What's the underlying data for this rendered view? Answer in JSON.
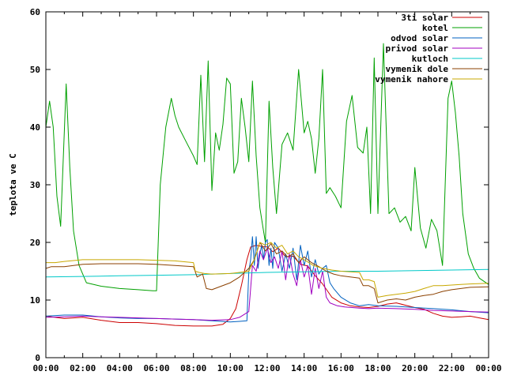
{
  "chart_data": {
    "type": "line",
    "title": "",
    "xlabel": "",
    "ylabel": "teplota ve C",
    "x_unit": "time of day (hours)",
    "xlim": [
      0,
      24
    ],
    "ylim": [
      0,
      60
    ],
    "x_ticks": [
      "00:00",
      "02:00",
      "04:00",
      "06:00",
      "08:00",
      "10:00",
      "12:00",
      "14:00",
      "16:00",
      "18:00",
      "20:00",
      "22:00",
      "00:00"
    ],
    "y_ticks": [
      "0",
      "10",
      "20",
      "30",
      "40",
      "50",
      "60"
    ],
    "grid": false,
    "legend_position": "top-right",
    "series": [
      {
        "name": "3ti solar",
        "color": "#cc0000",
        "x": [
          0.0,
          1.0,
          2.0,
          3.0,
          4.0,
          5.0,
          6.0,
          7.0,
          8.0,
          9.0,
          9.6,
          10.0,
          10.3,
          10.6,
          10.9,
          11.1,
          11.4,
          11.7,
          12.0,
          12.3,
          12.6,
          13.0,
          13.4,
          13.8,
          14.2,
          14.6,
          15.0,
          15.5,
          16.0,
          16.5,
          17.0,
          17.5,
          18.0,
          18.5,
          19.0,
          19.5,
          20.0,
          20.5,
          21.0,
          21.5,
          22.0,
          22.5,
          23.0,
          23.5,
          24.0
        ],
        "y": [
          7.2,
          6.8,
          7.0,
          6.5,
          6.1,
          6.1,
          5.9,
          5.6,
          5.5,
          5.5,
          5.8,
          6.8,
          8.5,
          12.5,
          17.0,
          19.2,
          19.5,
          19.3,
          19.2,
          18.4,
          19.0,
          17.5,
          17.6,
          16.2,
          15.9,
          14.2,
          12.8,
          10.5,
          9.5,
          9.0,
          8.8,
          8.7,
          8.9,
          9.3,
          9.5,
          9.1,
          8.7,
          8.4,
          7.7,
          7.2,
          7.0,
          7.1,
          7.2,
          6.9,
          6.6
        ]
      },
      {
        "name": "kotel",
        "color": "#00a000",
        "x": [
          0.0,
          0.2,
          0.4,
          0.6,
          0.8,
          1.1,
          1.3,
          1.5,
          1.8,
          2.2,
          3.0,
          4.0,
          5.0,
          5.8,
          6.0,
          6.2,
          6.5,
          6.8,
          7.0,
          7.2,
          7.6,
          8.0,
          8.2,
          8.4,
          8.6,
          8.8,
          9.0,
          9.2,
          9.4,
          9.6,
          9.8,
          10.0,
          10.2,
          10.4,
          10.6,
          10.8,
          11.0,
          11.2,
          11.4,
          11.6,
          11.8,
          11.9,
          12.1,
          12.3,
          12.5,
          12.8,
          13.1,
          13.4,
          13.7,
          14.0,
          14.2,
          14.4,
          14.6,
          14.8,
          15.0,
          15.2,
          15.4,
          15.7,
          16.0,
          16.3,
          16.6,
          16.9,
          17.2,
          17.4,
          17.6,
          17.8,
          18.0,
          18.3,
          18.6,
          18.9,
          19.2,
          19.5,
          19.8,
          20.0,
          20.3,
          20.6,
          20.9,
          21.2,
          21.5,
          21.8,
          22.0,
          22.2,
          22.4,
          22.6,
          22.9,
          23.2,
          23.5,
          24.0
        ],
        "y": [
          40.0,
          44.5,
          40.0,
          28.0,
          22.8,
          47.5,
          33.0,
          22.0,
          16.0,
          13.0,
          12.4,
          12.0,
          11.8,
          11.6,
          11.6,
          30.0,
          40.0,
          45.0,
          42.0,
          40.0,
          37.5,
          35.0,
          33.5,
          49.0,
          34.0,
          51.5,
          29.0,
          39.0,
          36.0,
          40.5,
          48.5,
          47.5,
          32.0,
          34.0,
          45.0,
          40.0,
          34.0,
          48.0,
          35.0,
          26.0,
          22.0,
          20.0,
          44.5,
          33.0,
          25.0,
          37.0,
          39.0,
          36.0,
          50.0,
          39.0,
          41.0,
          38.0,
          32.0,
          38.0,
          50.0,
          28.5,
          29.5,
          28.0,
          26.0,
          41.0,
          45.5,
          36.5,
          35.5,
          40.0,
          25.0,
          52.0,
          25.0,
          54.5,
          25.0,
          26.0,
          23.5,
          24.5,
          22.0,
          33.0,
          22.5,
          19.0,
          24.0,
          22.0,
          16.0,
          45.0,
          48.0,
          42.5,
          35.0,
          25.0,
          18.0,
          15.5,
          13.8,
          12.7
        ]
      },
      {
        "name": "odvod solar",
        "color": "#0060c0",
        "x": [
          0.0,
          1.0,
          2.0,
          3.0,
          4.0,
          5.0,
          6.0,
          7.0,
          8.0,
          9.0,
          10.0,
          10.5,
          10.9,
          11.0,
          11.1,
          11.2,
          11.3,
          11.4,
          11.5,
          11.6,
          11.7,
          11.8,
          11.9,
          12.0,
          12.1,
          12.2,
          12.3,
          12.4,
          12.6,
          12.8,
          13.0,
          13.2,
          13.4,
          13.6,
          13.8,
          14.0,
          14.2,
          14.4,
          14.6,
          14.8,
          15.0,
          15.2,
          15.4,
          15.6,
          16.0,
          16.5,
          17.0,
          17.5,
          18.0,
          19.0,
          20.0,
          21.0,
          22.0,
          23.0,
          24.0
        ],
        "y": [
          7.2,
          7.4,
          7.4,
          7.1,
          6.9,
          6.8,
          6.8,
          6.7,
          6.6,
          6.4,
          6.2,
          6.3,
          6.4,
          15.0,
          17.0,
          21.0,
          16.0,
          21.0,
          15.5,
          18.0,
          19.5,
          17.0,
          20.0,
          20.5,
          16.0,
          19.0,
          15.5,
          20.0,
          19.0,
          15.0,
          18.0,
          15.5,
          19.0,
          13.5,
          19.5,
          16.0,
          18.5,
          14.0,
          17.0,
          14.5,
          15.5,
          16.0,
          13.0,
          12.0,
          10.5,
          9.5,
          9.0,
          9.2,
          9.0,
          8.9,
          8.7,
          8.5,
          8.3,
          8.0,
          7.8
        ]
      },
      {
        "name": "privod solar",
        "color": "#a000c0",
        "x": [
          0.0,
          1.0,
          2.0,
          3.0,
          4.0,
          5.0,
          6.0,
          7.0,
          8.0,
          9.0,
          10.0,
          10.5,
          11.0,
          11.1,
          11.2,
          11.4,
          11.6,
          11.8,
          12.0,
          12.2,
          12.4,
          12.6,
          12.8,
          13.0,
          13.2,
          13.4,
          13.6,
          13.8,
          14.0,
          14.2,
          14.4,
          14.6,
          14.8,
          15.0,
          15.2,
          15.4,
          15.8,
          16.2,
          16.6,
          17.0,
          17.5,
          18.0,
          19.0,
          20.0,
          21.0,
          22.0,
          23.0,
          24.0
        ],
        "y": [
          7.0,
          7.1,
          7.2,
          7.1,
          7.0,
          6.9,
          6.8,
          6.7,
          6.6,
          6.5,
          6.6,
          7.0,
          8.0,
          12.0,
          16.0,
          15.0,
          18.5,
          17.0,
          19.0,
          16.5,
          17.5,
          15.5,
          18.5,
          13.5,
          18.0,
          14.5,
          12.5,
          17.0,
          14.0,
          16.0,
          11.0,
          15.5,
          12.0,
          15.0,
          10.5,
          9.5,
          9.0,
          8.8,
          8.7,
          8.6,
          8.5,
          8.6,
          8.5,
          8.4,
          8.2,
          8.1,
          8.0,
          7.9
        ]
      },
      {
        "name": "kutloch",
        "color": "#00c8c8",
        "x": [
          0.0,
          2.0,
          4.0,
          6.0,
          8.0,
          10.0,
          12.0,
          14.0,
          16.0,
          18.0,
          20.0,
          22.0,
          24.0
        ],
        "y": [
          14.0,
          14.1,
          14.2,
          14.3,
          14.4,
          14.6,
          14.8,
          14.9,
          15.0,
          15.0,
          15.1,
          15.2,
          15.3
        ]
      },
      {
        "name": "vymenik dole",
        "color": "#8b4000",
        "x": [
          0.0,
          0.3,
          1.0,
          2.0,
          3.0,
          4.0,
          5.0,
          6.0,
          7.0,
          8.0,
          8.2,
          8.5,
          8.7,
          9.0,
          10.0,
          10.5,
          11.0,
          11.3,
          11.6,
          11.9,
          12.2,
          12.5,
          12.8,
          13.1,
          13.4,
          13.7,
          14.0,
          14.4,
          14.8,
          15.2,
          15.6,
          16.0,
          16.5,
          17.0,
          17.2,
          17.5,
          17.8,
          18.0,
          18.5,
          19.0,
          19.5,
          20.0,
          20.5,
          21.0,
          21.5,
          22.0,
          22.5,
          23.0,
          24.0
        ],
        "y": [
          15.5,
          15.8,
          15.8,
          16.2,
          16.3,
          16.3,
          16.3,
          16.2,
          16.0,
          15.8,
          14.0,
          14.5,
          12.0,
          11.8,
          13.0,
          14.0,
          15.5,
          17.0,
          20.0,
          18.5,
          19.8,
          18.0,
          18.5,
          17.5,
          18.0,
          16.5,
          17.5,
          16.5,
          15.8,
          15.0,
          14.5,
          14.2,
          14.0,
          13.8,
          12.5,
          12.5,
          12.0,
          9.5,
          10.0,
          10.2,
          10.0,
          10.5,
          10.8,
          11.0,
          11.5,
          11.8,
          12.0,
          12.2,
          12.3
        ]
      },
      {
        "name": "vymenik nahore",
        "color": "#c8a800",
        "x": [
          0.0,
          0.5,
          1.0,
          2.0,
          3.0,
          4.0,
          5.0,
          6.0,
          7.0,
          8.0,
          8.1,
          8.3,
          8.6,
          9.0,
          10.0,
          10.5,
          11.0,
          11.3,
          11.6,
          11.9,
          12.2,
          12.5,
          12.8,
          13.1,
          13.4,
          13.7,
          14.0,
          14.5,
          15.0,
          15.5,
          16.0,
          16.5,
          17.0,
          17.2,
          17.5,
          17.8,
          18.0,
          18.5,
          19.0,
          19.5,
          20.0,
          20.5,
          21.0,
          21.5,
          22.0,
          22.5,
          23.0,
          24.0
        ],
        "y": [
          16.5,
          16.5,
          16.7,
          17.0,
          17.0,
          17.0,
          17.0,
          16.9,
          16.8,
          16.5,
          15.0,
          14.8,
          14.6,
          14.5,
          14.6,
          14.8,
          15.0,
          17.0,
          20.0,
          19.5,
          20.0,
          19.0,
          19.5,
          18.0,
          18.5,
          17.5,
          17.0,
          16.0,
          15.5,
          15.2,
          15.0,
          14.9,
          14.8,
          13.5,
          13.5,
          13.2,
          10.5,
          10.8,
          11.0,
          11.2,
          11.5,
          12.0,
          12.5,
          12.5,
          12.6,
          12.7,
          12.8,
          12.9
        ]
      }
    ]
  }
}
